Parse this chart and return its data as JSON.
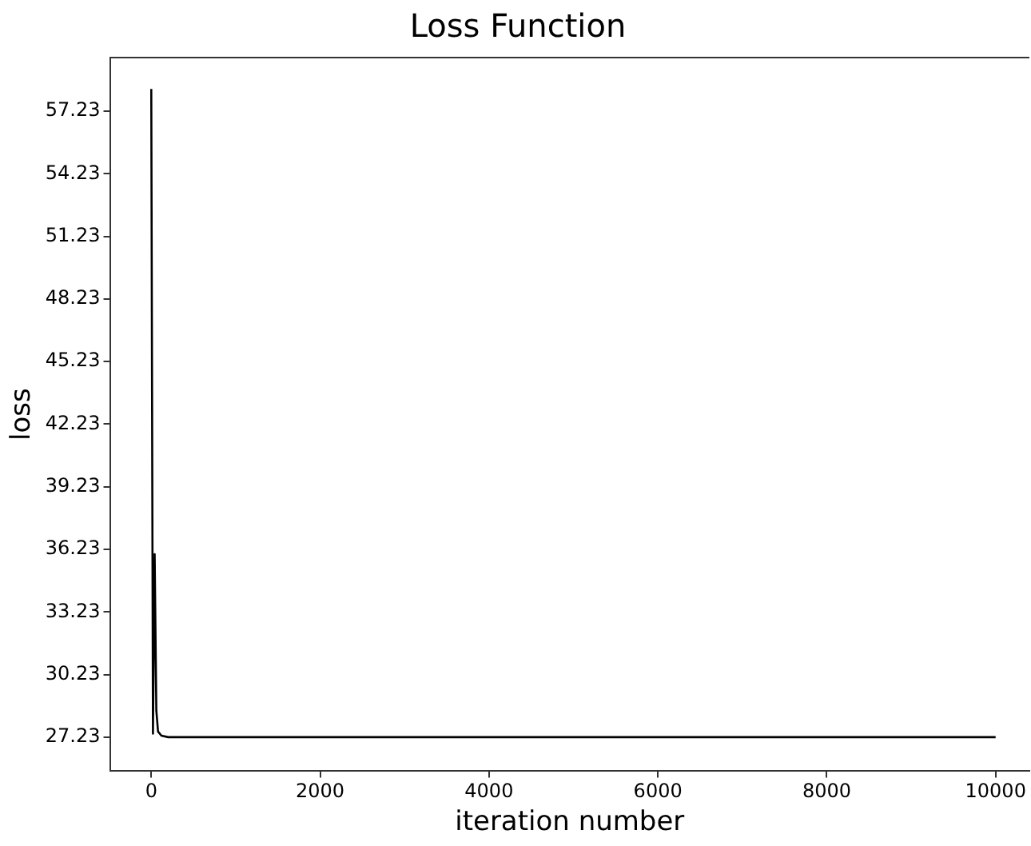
{
  "chart_data": {
    "type": "line",
    "title": "Loss Function",
    "xlabel": "iteration number",
    "ylabel": "loss",
    "x": [
      0,
      20,
      40,
      60,
      80,
      120,
      200,
      10000
    ],
    "series": [
      {
        "color": "#000000",
        "values": [
          58.3,
          27.4,
          36.0,
          28.5,
          27.5,
          27.3,
          27.23,
          27.23
        ]
      }
    ],
    "xlim": [
      -490,
      10400
    ],
    "xticks": [
      0,
      2000,
      4000,
      6000,
      8000,
      10000
    ],
    "ylim": [
      25.6,
      59.8
    ],
    "yticks": [
      27.23,
      30.23,
      33.23,
      36.23,
      39.23,
      42.23,
      45.23,
      48.23,
      51.23,
      54.23,
      57.23
    ],
    "grid": false,
    "legend": false,
    "marker": "none",
    "line_style": "solid"
  }
}
